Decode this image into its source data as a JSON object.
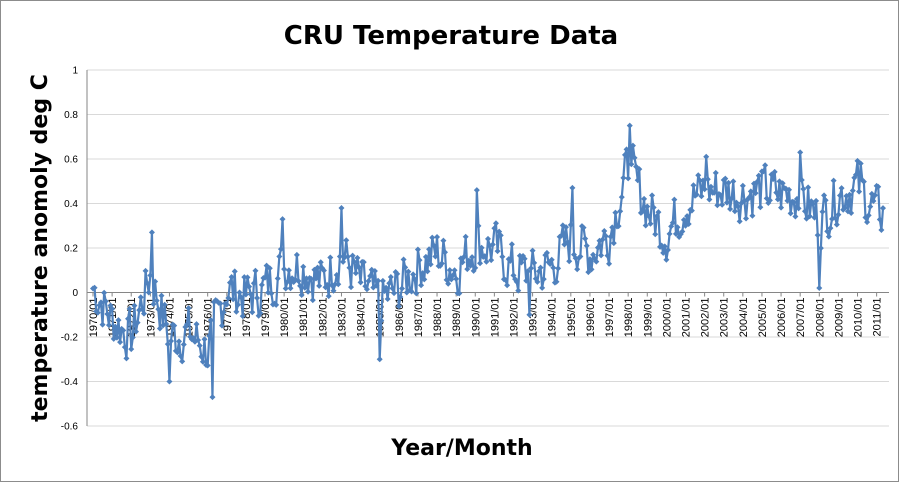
{
  "chart_data": {
    "type": "line",
    "title": "CRU Temperature Data",
    "xlabel": "Year/Month",
    "ylabel": "temperature anomoly deg C",
    "ylim": [
      -0.6,
      1.0
    ],
    "y_ticks": [
      "1",
      "0.8",
      "0.6",
      "0.4",
      "0.2",
      "0",
      "-0.2",
      "-0.4",
      "-0.6"
    ],
    "x_tick_labels": [
      "1970/01",
      "1971/01",
      "1972/01",
      "1973/01",
      "1974/01",
      "1975/01",
      "1976/01",
      "1977/01",
      "1978/01",
      "1979/01",
      "1980/01",
      "1981/01",
      "1982/01",
      "1983/01",
      "1984/01",
      "1985/01",
      "1986/01",
      "1987/01",
      "1988/01",
      "1989/01",
      "1990/01",
      "1991/01",
      "1992/01",
      "1993/01",
      "1994/01",
      "1995/01",
      "1996/01",
      "1997/01",
      "1998/01",
      "1999/01",
      "2000/01",
      "2001/01",
      "2002/01",
      "2003/01",
      "2004/01",
      "2005/01",
      "2006/01",
      "2007/01",
      "2008/01",
      "2009/01",
      "2010/01",
      "2011/01"
    ],
    "grid": "horizontal",
    "legend": "none",
    "series_color": "#4f81bd",
    "series": [
      {
        "x_start": "1970/01",
        "x_end": "2011/05",
        "annual_values": [
          0.02,
          -0.12,
          -0.2,
          0.08,
          -0.2,
          -0.18,
          -0.26,
          0.02,
          -0.02,
          0.02,
          0.12,
          0.12,
          0.04,
          0.18,
          0.04,
          -0.04,
          0.02,
          0.12,
          0.18,
          0.1,
          0.22,
          0.2,
          0.1,
          0.08,
          0.12,
          0.24,
          0.18,
          0.26,
          0.56,
          0.38,
          0.26,
          0.4,
          0.46,
          0.46,
          0.44,
          0.46,
          0.44,
          0.44,
          0.32,
          0.44,
          0.48,
          0.36
        ]
      }
    ]
  }
}
